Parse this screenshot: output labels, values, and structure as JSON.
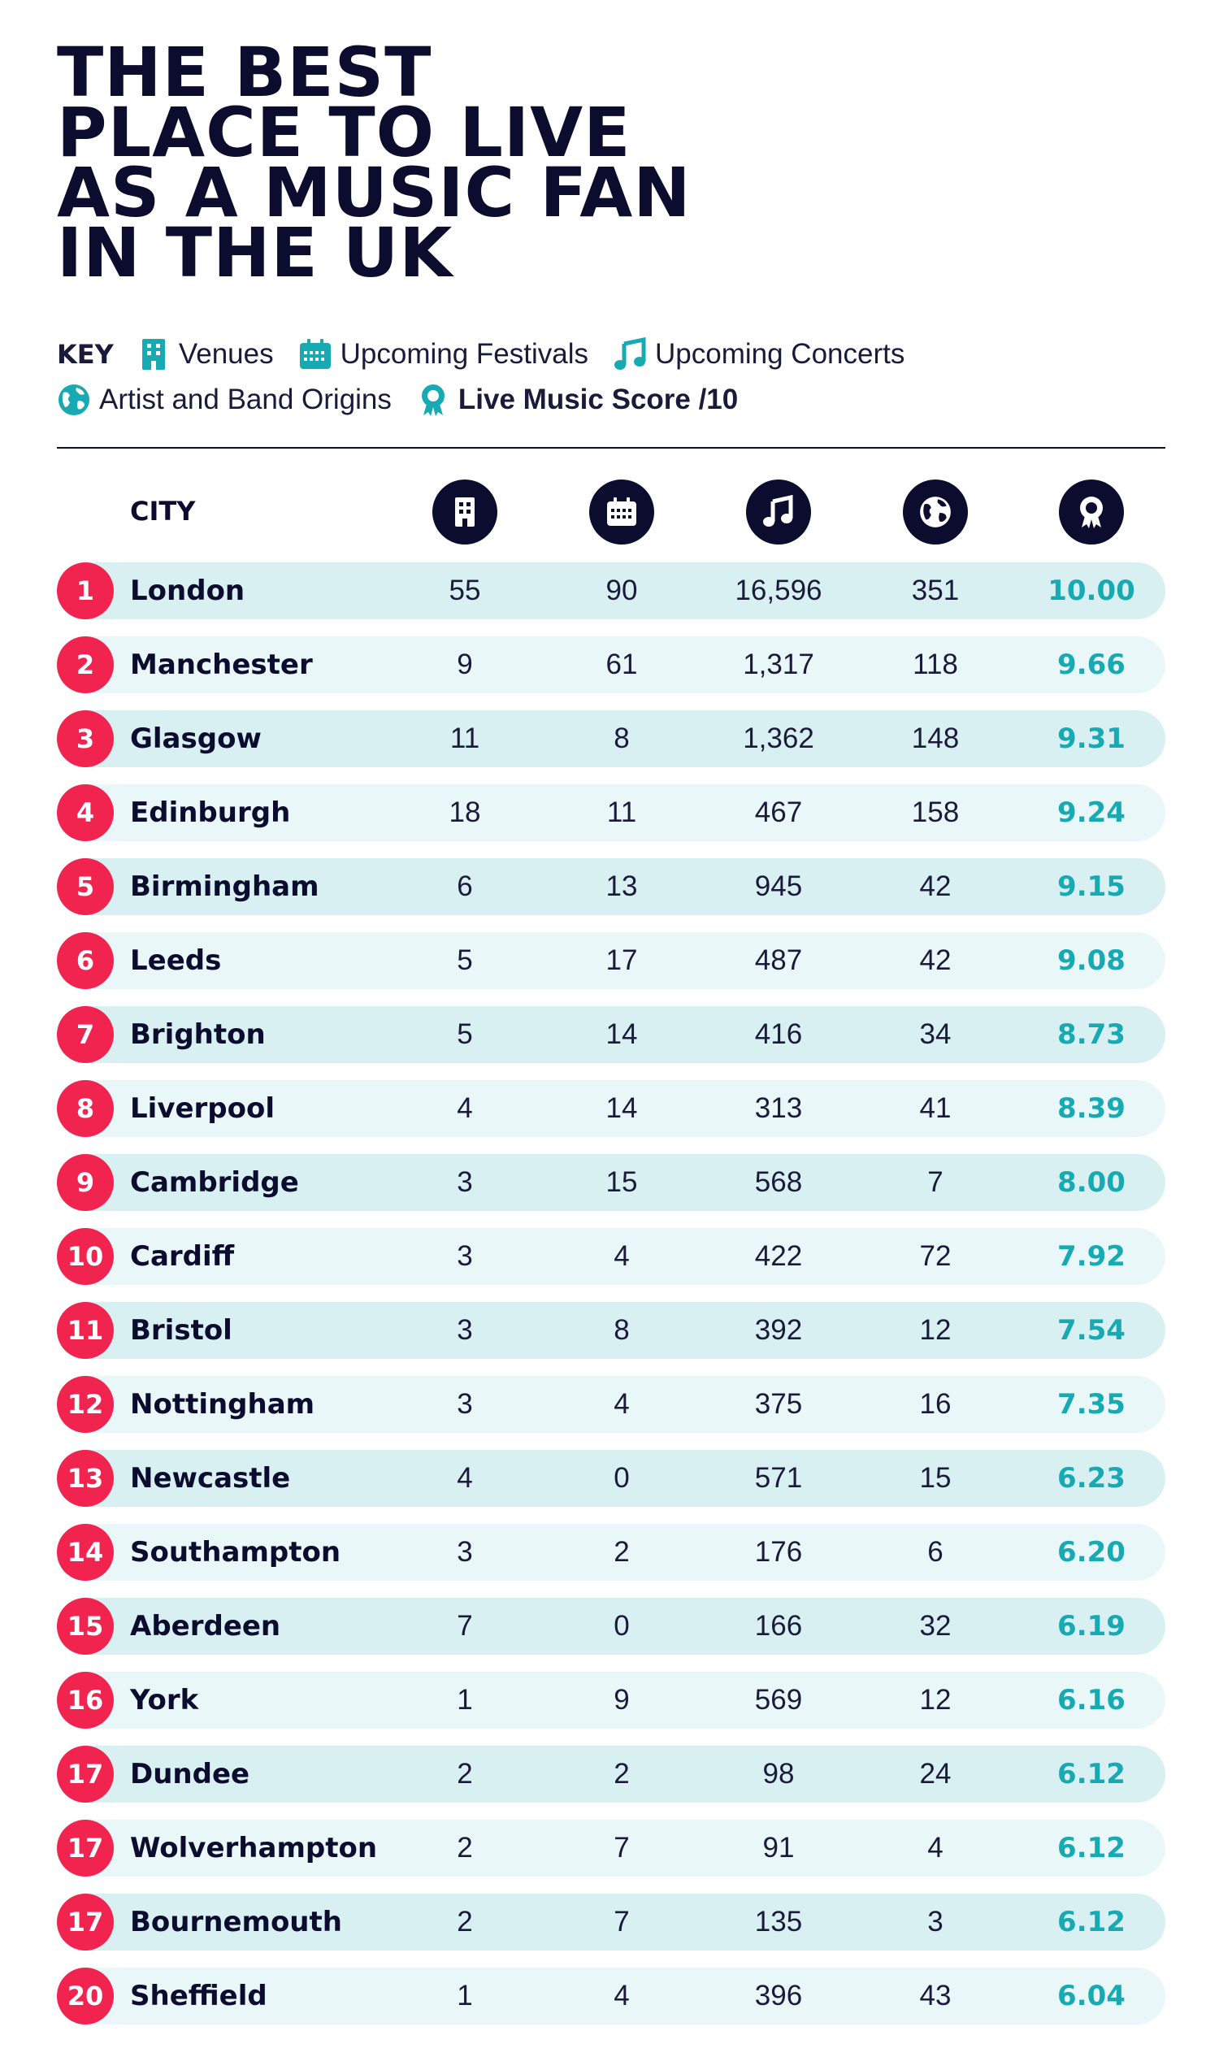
{
  "title_lines": [
    "THE BEST",
    "PLACE TO LIVE",
    "AS A MUSIC FAN",
    "IN THE UK"
  ],
  "key": {
    "label": "KEY",
    "items": [
      {
        "label": "Venues",
        "icon": "building-icon"
      },
      {
        "label": "Upcoming Festivals",
        "icon": "festival-calendar-icon"
      },
      {
        "label": "Upcoming Concerts",
        "icon": "music-note-icon"
      },
      {
        "label": "Artist and Band Origins",
        "icon": "globe-icon"
      },
      {
        "label": "Live Music Score /10",
        "icon": "award-icon"
      }
    ]
  },
  "table": {
    "city_header": "CITY",
    "rows": [
      {
        "rank": "1",
        "city": "London",
        "venues": "55",
        "festivals": "90",
        "concerts": "16,596",
        "origins": "351",
        "score": "10.00"
      },
      {
        "rank": "2",
        "city": "Manchester",
        "venues": "9",
        "festivals": "61",
        "concerts": "1,317",
        "origins": "118",
        "score": "9.66"
      },
      {
        "rank": "3",
        "city": "Glasgow",
        "venues": "11",
        "festivals": "8",
        "concerts": "1,362",
        "origins": "148",
        "score": "9.31"
      },
      {
        "rank": "4",
        "city": "Edinburgh",
        "venues": "18",
        "festivals": "11",
        "concerts": "467",
        "origins": "158",
        "score": "9.24"
      },
      {
        "rank": "5",
        "city": "Birmingham",
        "venues": "6",
        "festivals": "13",
        "concerts": "945",
        "origins": "42",
        "score": "9.15"
      },
      {
        "rank": "6",
        "city": "Leeds",
        "venues": "5",
        "festivals": "17",
        "concerts": "487",
        "origins": "42",
        "score": "9.08"
      },
      {
        "rank": "7",
        "city": "Brighton",
        "venues": "5",
        "festivals": "14",
        "concerts": "416",
        "origins": "34",
        "score": "8.73"
      },
      {
        "rank": "8",
        "city": "Liverpool",
        "venues": "4",
        "festivals": "14",
        "concerts": "313",
        "origins": "41",
        "score": "8.39"
      },
      {
        "rank": "9",
        "city": "Cambridge",
        "venues": "3",
        "festivals": "15",
        "concerts": "568",
        "origins": "7",
        "score": "8.00"
      },
      {
        "rank": "10",
        "city": "Cardiff",
        "venues": "3",
        "festivals": "4",
        "concerts": "422",
        "origins": "72",
        "score": "7.92"
      },
      {
        "rank": "11",
        "city": "Bristol",
        "venues": "3",
        "festivals": "8",
        "concerts": "392",
        "origins": "12",
        "score": "7.54"
      },
      {
        "rank": "12",
        "city": "Nottingham",
        "venues": "3",
        "festivals": "4",
        "concerts": "375",
        "origins": "16",
        "score": "7.35"
      },
      {
        "rank": "13",
        "city": "Newcastle",
        "venues": "4",
        "festivals": "0",
        "concerts": "571",
        "origins": "15",
        "score": "6.23"
      },
      {
        "rank": "14",
        "city": "Southampton",
        "venues": "3",
        "festivals": "2",
        "concerts": "176",
        "origins": "6",
        "score": "6.20"
      },
      {
        "rank": "15",
        "city": "Aberdeen",
        "venues": "7",
        "festivals": "0",
        "concerts": "166",
        "origins": "32",
        "score": "6.19"
      },
      {
        "rank": "16",
        "city": "York",
        "venues": "1",
        "festivals": "9",
        "concerts": "569",
        "origins": "12",
        "score": "6.16"
      },
      {
        "rank": "17",
        "city": "Dundee",
        "venues": "2",
        "festivals": "2",
        "concerts": "98",
        "origins": "24",
        "score": "6.12"
      },
      {
        "rank": "17",
        "city": "Wolverhampton",
        "venues": "2",
        "festivals": "7",
        "concerts": "91",
        "origins": "4",
        "score": "6.12"
      },
      {
        "rank": "17",
        "city": "Bournemouth",
        "venues": "2",
        "festivals": "7",
        "concerts": "135",
        "origins": "3",
        "score": "6.12"
      },
      {
        "rank": "20",
        "city": "Sheffield",
        "venues": "1",
        "festivals": "4",
        "concerts": "396",
        "origins": "43",
        "score": "6.04"
      }
    ]
  },
  "colors": {
    "navy": "#0c0c2e",
    "accent_teal": "#17aab3",
    "rank_red": "#f0244f",
    "row_band_dark": "#d9f0f2",
    "row_band_light": "#eaf7f8"
  }
}
